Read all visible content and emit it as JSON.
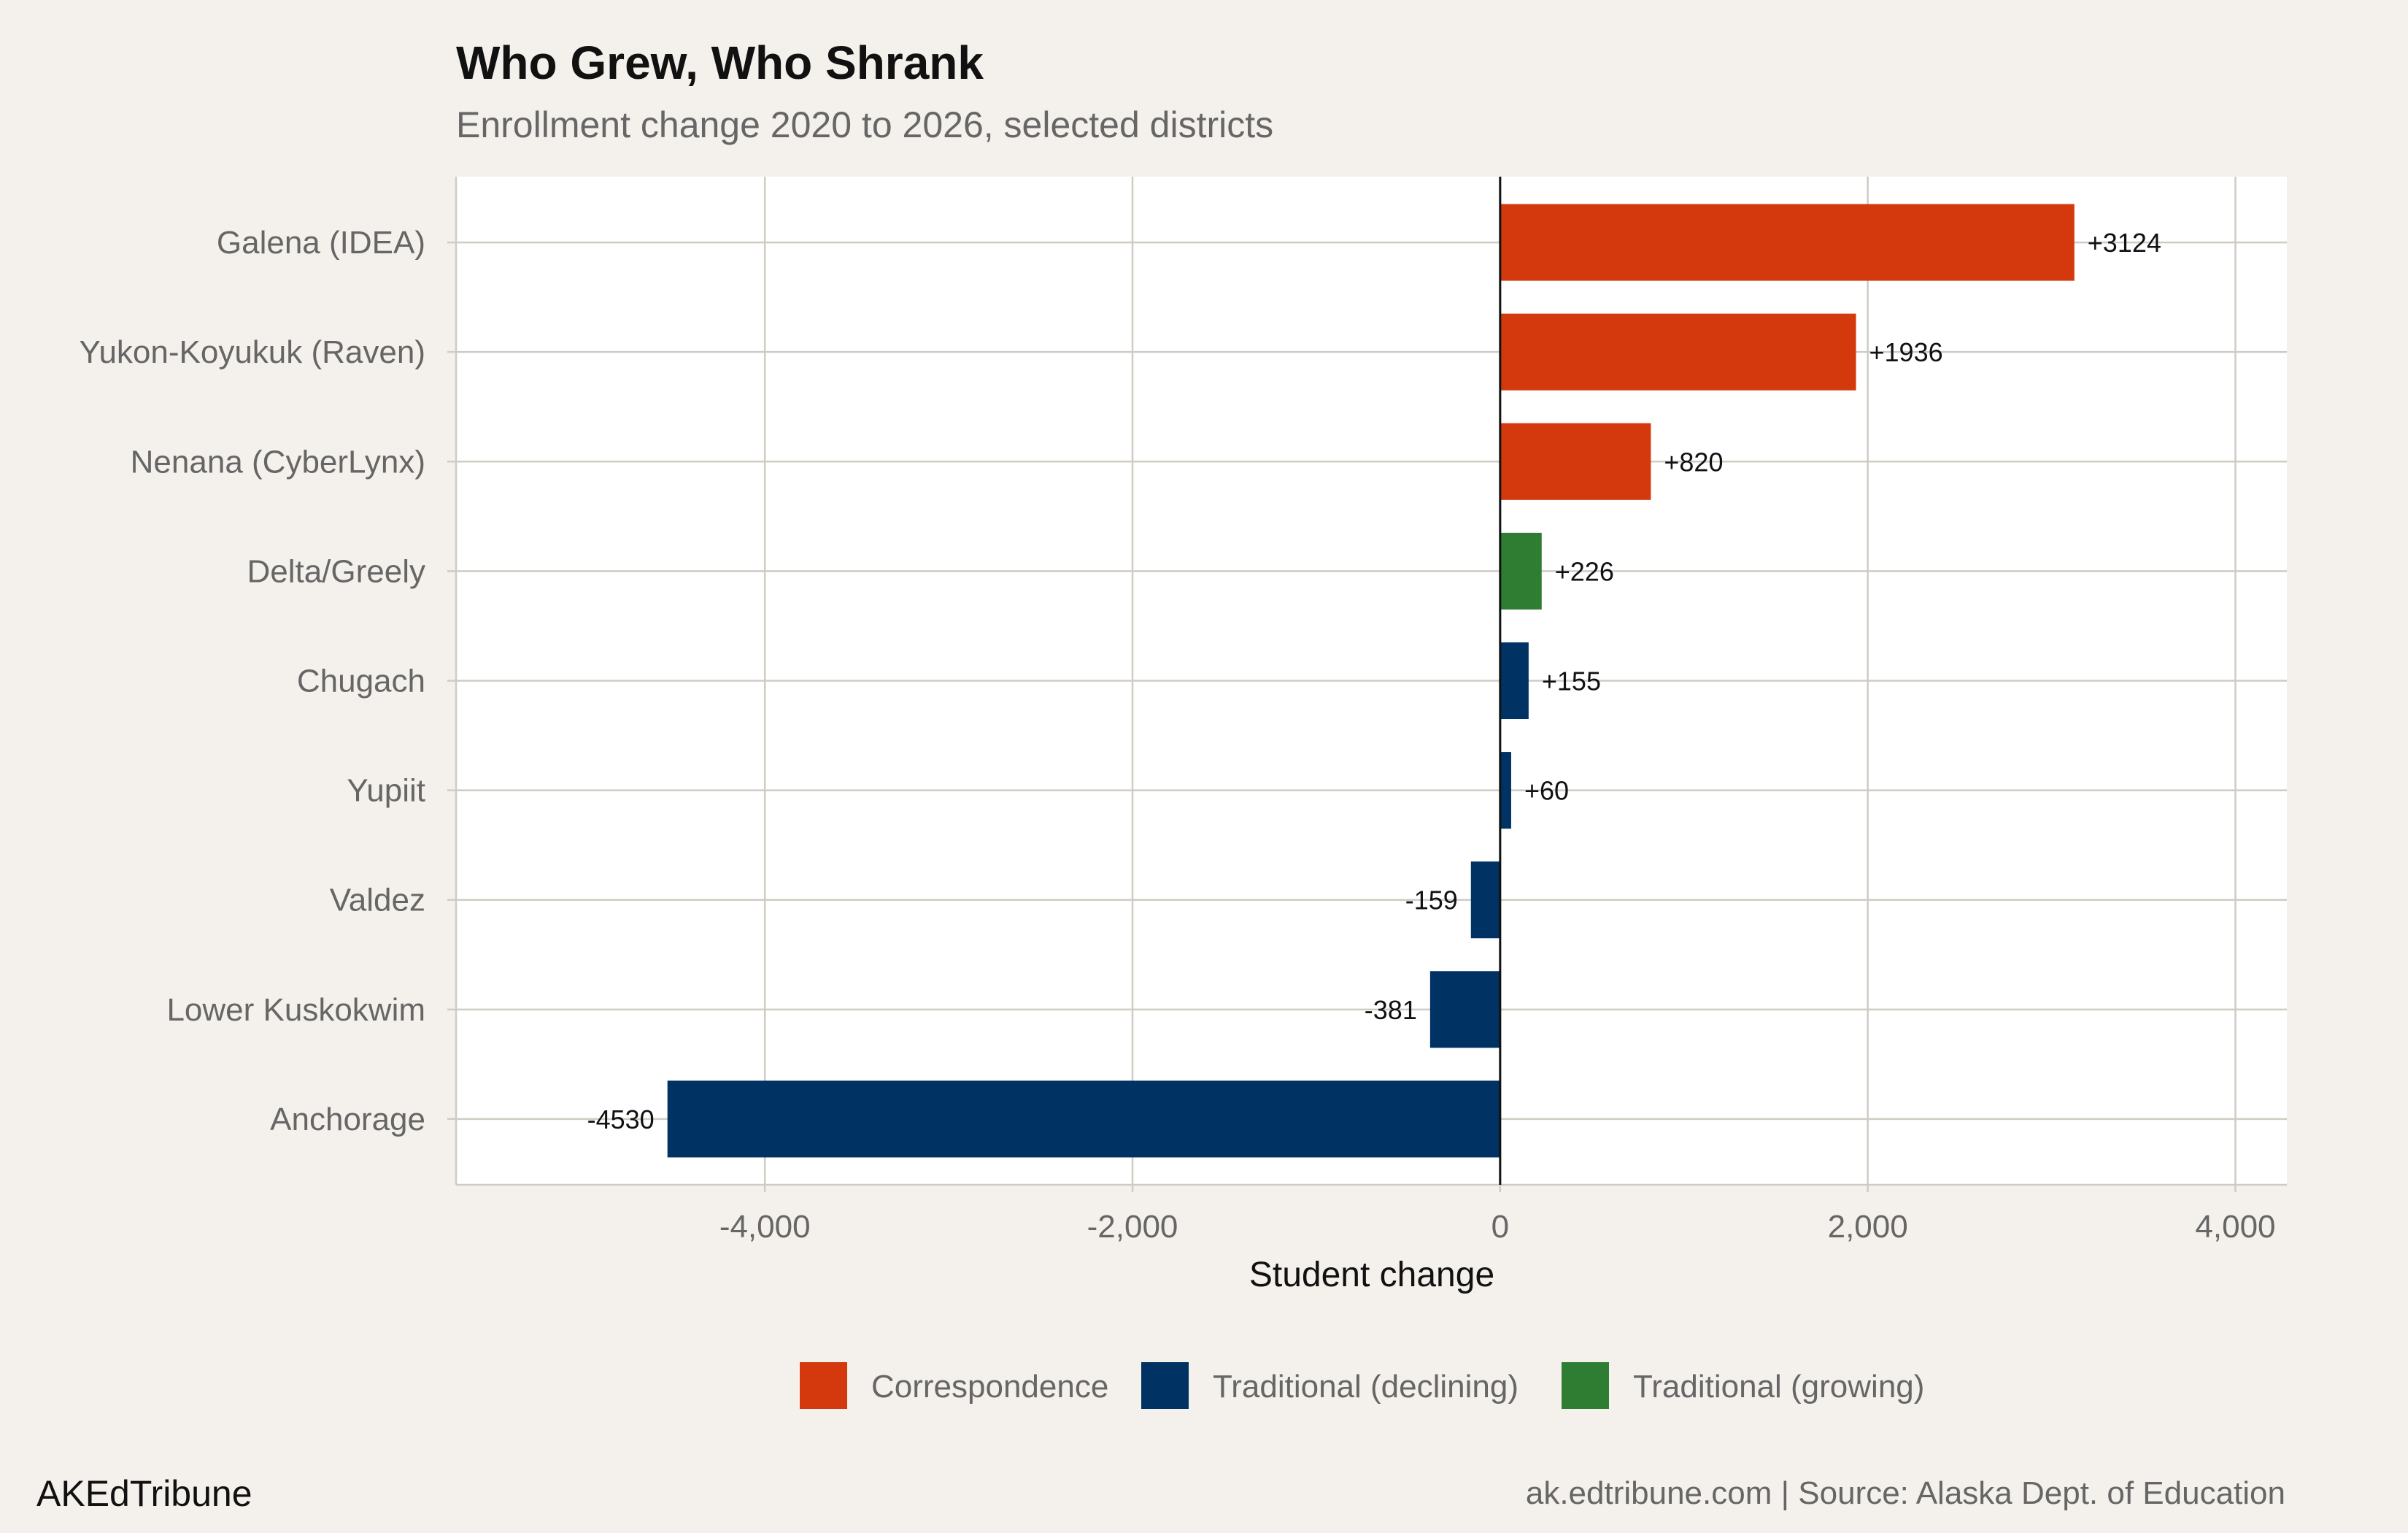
{
  "chart_data": {
    "type": "bar",
    "orientation": "horizontal",
    "title": "Who Grew, Who Shrank",
    "subtitle": "Enrollment change 2020 to 2026, selected districts",
    "xlabel": "Student change",
    "ylabel": "",
    "xlim": [
      -5680,
      4280
    ],
    "xticks": [
      -4000,
      -2000,
      0,
      2000,
      4000
    ],
    "xtick_labels": [
      "-4,000",
      "-2,000",
      "0",
      "2,000",
      "4,000"
    ],
    "grid": true,
    "legend_position": "bottom",
    "categories": [
      "Galena (IDEA)",
      "Yukon-Koyukuk (Raven)",
      "Nenana (CyberLynx)",
      "Delta/Greely",
      "Chugach",
      "Yupiit",
      "Valdez",
      "Lower Kuskokwim",
      "Anchorage"
    ],
    "values": [
      3124,
      1936,
      820,
      226,
      155,
      60,
      -159,
      -381,
      -4530
    ],
    "labels": [
      "+3124",
      "+1936",
      "+820",
      "+226",
      "+155",
      "+60",
      "-159",
      "-381",
      "-4530"
    ],
    "groups": [
      "Correspondence",
      "Correspondence",
      "Correspondence",
      "Traditional (growing)",
      "Traditional (declining)",
      "Traditional (declining)",
      "Traditional (declining)",
      "Traditional (declining)",
      "Traditional (declining)"
    ],
    "legend": [
      {
        "name": "Correspondence",
        "color": "#d4390e"
      },
      {
        "name": "Traditional (declining)",
        "color": "#003264"
      },
      {
        "name": "Traditional (growing)",
        "color": "#2e7d32"
      }
    ]
  },
  "footer": {
    "brand": "AKEdTribune",
    "caption": "ak.edtribune.com | Source: Alaska Dept. of Education"
  }
}
